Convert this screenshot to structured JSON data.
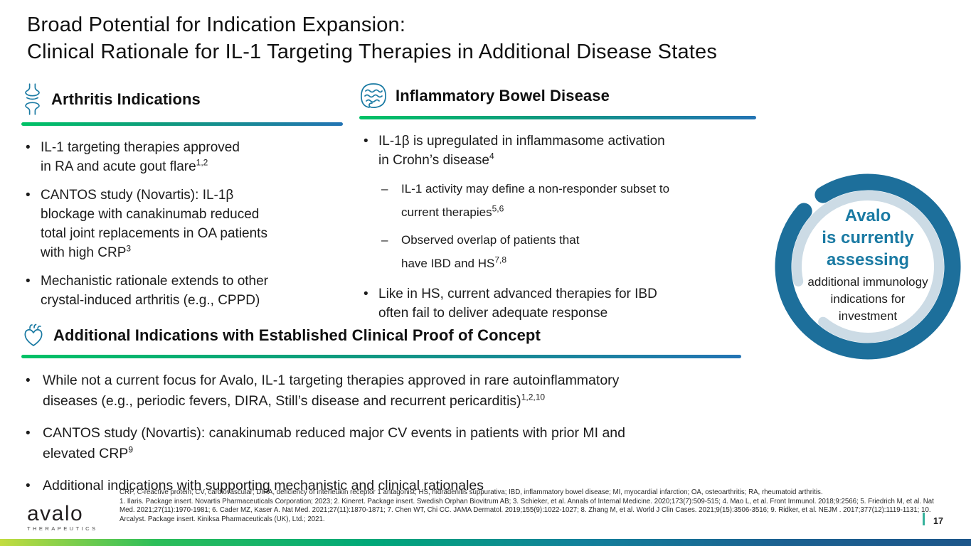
{
  "slide": {
    "title_line1": "Broad Potential for Indication Expansion:",
    "title_line2": "Clinical Rationale for IL-1 Targeting Therapies in Additional Disease States",
    "page_number": "17"
  },
  "sections": {
    "arthritis": {
      "icon": "joint-icon",
      "title": "Arthritis Indications",
      "bullets": [
        {
          "text": "IL-1 targeting therapies approved\nin RA and acute gout flare",
          "sup": "1,2"
        },
        {
          "text": "CANTOS study (Novartis): IL-1β\nblockage with canakinumab reduced\ntotal joint replacements in OA patients\nwith high CRP",
          "sup": "3"
        },
        {
          "text": "Mechanistic rationale extends to other\ncrystal-induced arthritis (e.g., CPPD)",
          "sup": ""
        }
      ]
    },
    "ibd": {
      "icon": "intestine-icon",
      "title": "Inflammatory Bowel Disease",
      "bullets": [
        {
          "text": "IL-1β is upregulated in inflammasome activation\nin Crohn’s disease",
          "sup": "4",
          "children": [
            {
              "text": "IL-1 activity may define a non-responder subset to\ncurrent therapies",
              "sup": "5,6"
            },
            {
              "text": "Observed overlap of patients that\nhave IBD and HS",
              "sup": "7,8"
            }
          ]
        },
        {
          "text": "Like in HS, current advanced therapies for IBD\noften fail to deliver adequate response",
          "sup": ""
        }
      ]
    },
    "additional": {
      "icon": "heart-icon",
      "title": "Additional Indications with Established Clinical Proof of Concept",
      "bullets": [
        {
          "text": "While not a current focus for Avalo, IL-1 targeting therapies approved in rare autoinflammatory\ndiseases (e.g., periodic fevers, DIRA, Still’s disease and recurrent pericarditis)",
          "sup": "1,2,10"
        },
        {
          "text": "CANTOS study (Novartis): canakinumab reduced major CV events in patients with prior MI and\nelevated CRP",
          "sup": "9"
        },
        {
          "text": "Additional indications with supporting mechanistic and clinical rationales",
          "sup": ""
        }
      ]
    }
  },
  "badge": {
    "highlight_line1": "Avalo",
    "highlight_line2": "is currently",
    "highlight_line3": "assessing",
    "body_line1": "additional immunology",
    "body_line2": "indications for",
    "body_line3": "investment"
  },
  "footnotes": {
    "abbreviations": "CRP, C-reactive protein; CV, cardiovascular; DIRA, deficiency of interleukin receptor 1 antagonist; HS, hidradenitis suppurativa; IBD, inflammatory bowel disease; MI, myocardial infarction; OA, osteoarthritis; RA, rheumatoid arthritis.",
    "references": "1. Ilaris. Package insert. Novartis Pharmaceuticals Corporation; 2023; 2. Kineret. Package insert. Swedish Orphan Biovitrum AB; 3. Schieker, et al. Annals of Internal Medicine. 2020;173(7):509-515; 4. Mao L, et al. Front Immunol. 2018;9:2566; 5. Friedrich M, et al. Nat Med. 2021;27(11):1970-1981; 6. Cader MZ, Kaser A. Nat Med. 2021;27(11):1870-1871; 7. Chen WT, Chi CC. JAMA Dermatol. 2019;155(9):1022-1027; 8. Zhang M, et al. World J Clin Cases. 2021;9(15):3506-3516; 9. Ridker, et al. NEJM . 2017;377(12):1119-1131; 10. Arcalyst. Package insert. Kiniksa Pharmaceuticals (UK), Ltd.; 2021."
  },
  "logo": {
    "word": "avalo",
    "sub": "THERAPEUTICS"
  },
  "colors": {
    "accent_teal": "#1a7aa3",
    "ring_dark": "#1d6f9b",
    "ring_light": "#ccdbe5",
    "underline_green": "#00c266",
    "underline_blue": "#2374b4",
    "bar_left": "#c3dc40",
    "bar_right": "#1d568a",
    "page_tick": "#35b29c"
  }
}
